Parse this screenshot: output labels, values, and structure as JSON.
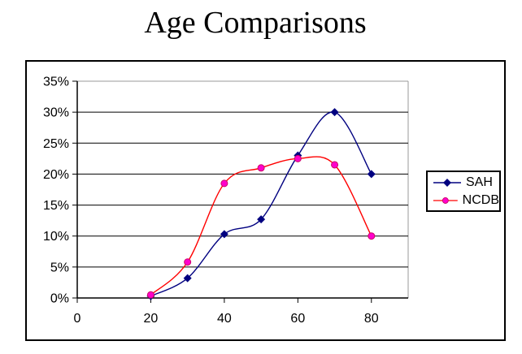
{
  "title": "Age Comparisons",
  "legend": {
    "items": [
      {
        "label": "SAH"
      },
      {
        "label": "NCDB"
      }
    ]
  },
  "chart_data": {
    "type": "line",
    "title": "Age Comparisons",
    "x": [
      20,
      30,
      40,
      50,
      60,
      70,
      80
    ],
    "series": [
      {
        "name": "SAH",
        "color": "#000080",
        "marker": "diamond",
        "marker_color": "#000080",
        "values": [
          0.3,
          3.2,
          10.3,
          12.7,
          23,
          30,
          20
        ]
      },
      {
        "name": "NCDB",
        "color": "#FF0000",
        "marker": "circle",
        "marker_color": "#FF00CC",
        "marker_edge_color": "#CC0066",
        "values": [
          0.5,
          5.8,
          18.5,
          21,
          22.5,
          21.5,
          10
        ]
      }
    ],
    "xlabel": "",
    "ylabel": "",
    "x_ticks": [
      0,
      20,
      40,
      60,
      80
    ],
    "y_ticks": [
      "0%",
      "5%",
      "10%",
      "15%",
      "20%",
      "25%",
      "30%",
      "35%"
    ],
    "y_major_unit": 5,
    "xlim": [
      0,
      90
    ],
    "ylim": [
      0,
      35
    ],
    "grid": "horizontal",
    "gridline_color": "#000000",
    "axis_color": "#000000",
    "plot_border_color": "#999999",
    "legend_position": "right",
    "smooth": true
  }
}
